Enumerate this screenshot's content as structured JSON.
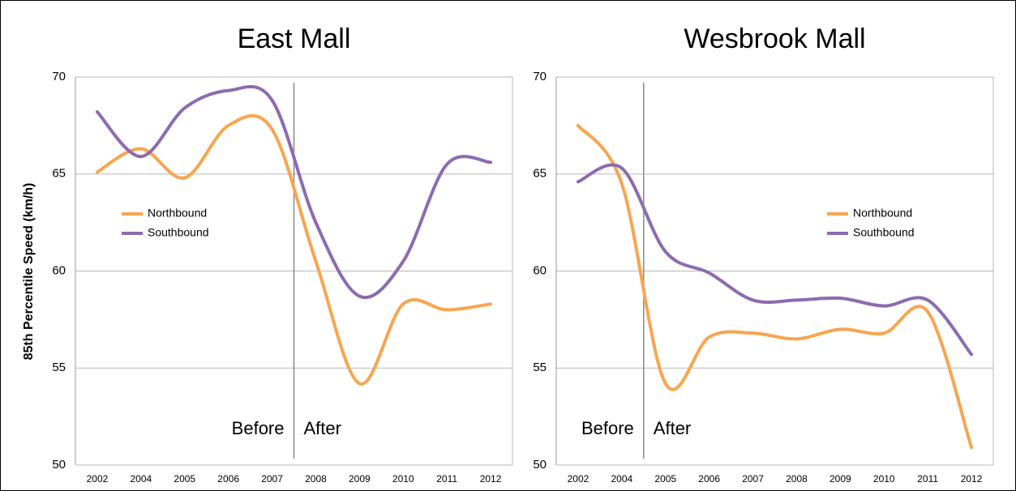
{
  "chart_data": [
    {
      "type": "line",
      "title": "East Mall",
      "ylabel": "85th Percentile Speed (km/h)",
      "categories": [
        "2002",
        "2004",
        "2005",
        "2006",
        "2007",
        "2008",
        "2009",
        "2010",
        "2011",
        "2012"
      ],
      "series": [
        {
          "name": "Northbound",
          "color": "#f9a54f",
          "values": [
            65.1,
            66.3,
            64.8,
            67.5,
            67.3,
            60.5,
            54.2,
            58.3,
            58.0,
            58.3
          ]
        },
        {
          "name": "Southbound",
          "color": "#8c6bb1",
          "values": [
            68.2,
            65.9,
            68.4,
            69.3,
            68.8,
            62.5,
            58.7,
            60.5,
            65.5,
            65.6
          ]
        }
      ],
      "ylim": [
        50,
        70
      ],
      "yticks": [
        50,
        55,
        60,
        65,
        70
      ],
      "grid": true,
      "legend": "left",
      "annotations": [
        "Before",
        "After"
      ]
    },
    {
      "type": "line",
      "title": "Wesbrook Mall",
      "categories": [
        "2002",
        "2004",
        "2005",
        "2006",
        "2007",
        "2008",
        "2009",
        "2010",
        "2011",
        "2012"
      ],
      "series": [
        {
          "name": "Northbound",
          "color": "#f9a54f",
          "values": [
            67.5,
            64.5,
            54.2,
            56.6,
            56.8,
            56.5,
            57.0,
            56.8,
            57.9,
            50.9
          ]
        },
        {
          "name": "Southbound",
          "color": "#8c6bb1",
          "values": [
            64.6,
            65.3,
            61.0,
            59.9,
            58.5,
            58.5,
            58.6,
            58.2,
            58.5,
            55.7
          ]
        }
      ],
      "ylim": [
        50,
        70
      ],
      "yticks": [
        50,
        55,
        60,
        65,
        70
      ],
      "grid": true,
      "legend": "right",
      "annotations": [
        "Before",
        "After"
      ]
    }
  ]
}
